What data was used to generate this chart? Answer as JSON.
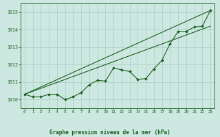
{
  "title": "Graphe pression niveau de la mer (hPa)",
  "bg_color": "#cce8e0",
  "grid_color": "#aaccc4",
  "line_color": "#1a5e20",
  "xlim": [
    -0.5,
    23.5
  ],
  "ylim": [
    1009.5,
    1015.5
  ],
  "yticks": [
    1010,
    1011,
    1012,
    1013,
    1014,
    1015
  ],
  "xticks": [
    0,
    1,
    2,
    3,
    4,
    5,
    6,
    7,
    8,
    9,
    10,
    11,
    12,
    13,
    14,
    15,
    16,
    17,
    18,
    19,
    20,
    21,
    22,
    23
  ],
  "series1": [
    1010.3,
    1010.15,
    1010.15,
    1010.3,
    1010.3,
    1010.0,
    1010.15,
    1010.4,
    1010.85,
    1011.1,
    1011.05,
    1011.8,
    1011.7,
    1011.6,
    1011.15,
    1011.2,
    1011.75,
    1012.25,
    1013.2,
    1013.9,
    1013.9,
    1014.15,
    1014.2,
    1015.1
  ],
  "trend1_x": [
    0,
    23
  ],
  "trend1_y": [
    1010.3,
    1015.1
  ],
  "trend2_x": [
    0,
    23
  ],
  "trend2_y": [
    1010.3,
    1014.2
  ],
  "figsize": [
    3.2,
    2.0
  ],
  "dpi": 100
}
